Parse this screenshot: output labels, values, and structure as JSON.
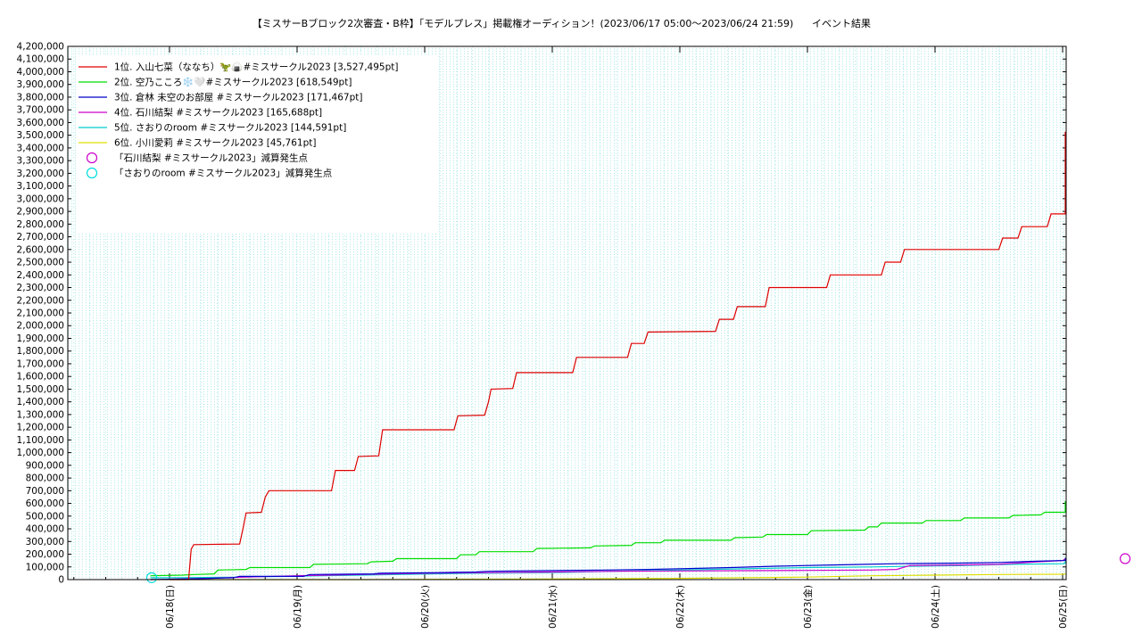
{
  "chart_data": {
    "type": "line",
    "title": "【ミスサーBブロック2次審査・B枠】「モデルプレス」掲載権オーディション！(2023/06/17 05:00～2023/06/24 21:59)",
    "subtitle": "イベント結果",
    "xlabel": "",
    "ylabel": "",
    "grid": true,
    "legend_position": "top-left",
    "x_ticks": [
      "06/18(日)",
      "06/19(月)",
      "06/20(火)",
      "06/21(水)",
      "06/22(木)",
      "06/23(金)",
      "06/24(土)",
      "06/25(日)"
    ],
    "x_range_days": [
      0,
      7.9
    ],
    "ylim": [
      0,
      4200000
    ],
    "y_ticks": [
      0,
      100000,
      200000,
      300000,
      400000,
      500000,
      600000,
      700000,
      800000,
      900000,
      1000000,
      1100000,
      1200000,
      1300000,
      1400000,
      1500000,
      1600000,
      1700000,
      1800000,
      1900000,
      2000000,
      2100000,
      2200000,
      2300000,
      2400000,
      2500000,
      2600000,
      2700000,
      2800000,
      2900000,
      3000000,
      3100000,
      3200000,
      3300000,
      3400000,
      3500000,
      3600000,
      3700000,
      3800000,
      3900000,
      4000000,
      4100000,
      4200000
    ],
    "y_tick_labels": [
      "0",
      "100,000",
      "200,000",
      "300,000",
      "400,000",
      "500,000",
      "600,000",
      "700,000",
      "800,000",
      "900,000",
      "1,000,000",
      "1,100,000",
      "1,200,000",
      "1,300,000",
      "1,400,000",
      "1,500,000",
      "1,600,000",
      "1,700,000",
      "1,800,000",
      "1,900,000",
      "2,000,000",
      "2,100,000",
      "2,200,000",
      "2,300,000",
      "2,400,000",
      "2,500,000",
      "2,600,000",
      "2,700,000",
      "2,800,000",
      "2,900,000",
      "3,000,000",
      "3,100,000",
      "3,200,000",
      "3,300,000",
      "3,400,000",
      "3,500,000",
      "3,600,000",
      "3,700,000",
      "3,800,000",
      "3,900,000",
      "4,000,000",
      "4,100,000",
      "4,200,000"
    ],
    "series": [
      {
        "name": "1位. 入山七菜（ななち）🦖🍙#ミスサークル2023 [3,527,495pt]",
        "color": "#dd0000",
        "points": [
          [
            0,
            0
          ],
          [
            0.15,
            0
          ],
          [
            0.17,
            240000
          ],
          [
            0.19,
            275000
          ],
          [
            0.55,
            280000
          ],
          [
            0.58,
            420000
          ],
          [
            0.6,
            525000
          ],
          [
            0.72,
            530000
          ],
          [
            0.75,
            650000
          ],
          [
            0.78,
            700000
          ],
          [
            1.27,
            700000
          ],
          [
            1.3,
            860000
          ],
          [
            1.45,
            860000
          ],
          [
            1.48,
            970000
          ],
          [
            1.64,
            975000
          ],
          [
            1.67,
            1180000
          ],
          [
            2.23,
            1180000
          ],
          [
            2.26,
            1290000
          ],
          [
            2.47,
            1295000
          ],
          [
            2.5,
            1400000
          ],
          [
            2.52,
            1500000
          ],
          [
            2.69,
            1505000
          ],
          [
            2.72,
            1630000
          ],
          [
            3.16,
            1630000
          ],
          [
            3.19,
            1750000
          ],
          [
            3.59,
            1750000
          ],
          [
            3.62,
            1860000
          ],
          [
            3.72,
            1860000
          ],
          [
            3.75,
            1950000
          ],
          [
            4.28,
            1955000
          ],
          [
            4.31,
            2050000
          ],
          [
            4.42,
            2050000
          ],
          [
            4.45,
            2150000
          ],
          [
            4.67,
            2150000
          ],
          [
            4.7,
            2300000
          ],
          [
            5.15,
            2300000
          ],
          [
            5.18,
            2400000
          ],
          [
            5.58,
            2400000
          ],
          [
            5.61,
            2500000
          ],
          [
            5.73,
            2500000
          ],
          [
            5.76,
            2600000
          ],
          [
            6.5,
            2600000
          ],
          [
            6.53,
            2690000
          ],
          [
            6.65,
            2690000
          ],
          [
            6.68,
            2780000
          ],
          [
            6.88,
            2780000
          ],
          [
            6.91,
            2880000
          ],
          [
            7.5,
            2880000
          ],
          [
            7.53,
            3040000
          ],
          [
            7.66,
            3040000
          ],
          [
            7.69,
            3150000
          ],
          [
            7.83,
            3150000
          ],
          [
            7.86,
            3300000
          ],
          [
            7.88,
            3525000
          ],
          [
            8.0,
            3527495
          ]
        ]
      },
      {
        "name": "2位. 空乃こころ❄️🤍#ミスサークル2023 [618,549pt]",
        "color": "#00dd00",
        "points": [
          [
            -0.15,
            30000
          ],
          [
            0.1,
            35000
          ],
          [
            0.2,
            40000
          ],
          [
            0.35,
            45000
          ],
          [
            0.38,
            75000
          ],
          [
            0.6,
            80000
          ],
          [
            0.63,
            95000
          ],
          [
            1.1,
            95000
          ],
          [
            1.13,
            120000
          ],
          [
            1.55,
            125000
          ],
          [
            1.58,
            140000
          ],
          [
            1.75,
            145000
          ],
          [
            1.78,
            165000
          ],
          [
            2.25,
            165000
          ],
          [
            2.28,
            195000
          ],
          [
            2.4,
            195000
          ],
          [
            2.43,
            220000
          ],
          [
            2.85,
            220000
          ],
          [
            2.88,
            245000
          ],
          [
            3.3,
            250000
          ],
          [
            3.33,
            265000
          ],
          [
            3.62,
            270000
          ],
          [
            3.65,
            290000
          ],
          [
            3.85,
            290000
          ],
          [
            3.88,
            310000
          ],
          [
            4.4,
            310000
          ],
          [
            4.43,
            330000
          ],
          [
            4.65,
            335000
          ],
          [
            4.68,
            355000
          ],
          [
            5.0,
            355000
          ],
          [
            5.03,
            385000
          ],
          [
            5.45,
            390000
          ],
          [
            5.48,
            415000
          ],
          [
            5.55,
            415000
          ],
          [
            5.58,
            445000
          ],
          [
            5.9,
            445000
          ],
          [
            5.93,
            465000
          ],
          [
            6.2,
            465000
          ],
          [
            6.23,
            485000
          ],
          [
            6.58,
            485000
          ],
          [
            6.61,
            505000
          ],
          [
            6.83,
            510000
          ],
          [
            6.86,
            530000
          ],
          [
            7.15,
            530000
          ],
          [
            7.18,
            560000
          ],
          [
            7.4,
            560000
          ],
          [
            7.43,
            585000
          ],
          [
            7.85,
            590000
          ],
          [
            7.88,
            615000
          ],
          [
            8.0,
            618549
          ]
        ]
      },
      {
        "name": "3位. 倉林 未空のお部屋 #ミスサークル2023 [171,467pt]",
        "color": "#0000cc",
        "points": [
          [
            -0.15,
            0
          ],
          [
            0.15,
            5000
          ],
          [
            0.5,
            15000
          ],
          [
            0.55,
            25000
          ],
          [
            1.05,
            25000
          ],
          [
            1.1,
            40000
          ],
          [
            1.6,
            45000
          ],
          [
            1.65,
            50000
          ],
          [
            2.1,
            55000
          ],
          [
            2.4,
            60000
          ],
          [
            2.5,
            65000
          ],
          [
            2.95,
            70000
          ],
          [
            3.4,
            75000
          ],
          [
            3.75,
            80000
          ],
          [
            4.0,
            85000
          ],
          [
            4.4,
            95000
          ],
          [
            4.75,
            105000
          ],
          [
            5.2,
            115000
          ],
          [
            5.45,
            120000
          ],
          [
            5.7,
            125000
          ],
          [
            6.2,
            130000
          ],
          [
            6.5,
            135000
          ],
          [
            6.8,
            145000
          ],
          [
            7.1,
            150000
          ],
          [
            7.5,
            160000
          ],
          [
            7.9,
            170000
          ],
          [
            8.0,
            171467
          ]
        ]
      },
      {
        "name": "4位. 石川結梨 #ミスサークル2023 [165,688pt]",
        "color": "#cc00cc",
        "points": [
          [
            -0.15,
            0
          ],
          [
            0.3,
            10000
          ],
          [
            0.6,
            20000
          ],
          [
            1.0,
            30000
          ],
          [
            1.5,
            40000
          ],
          [
            2.0,
            50000
          ],
          [
            2.5,
            55000
          ],
          [
            3.0,
            60000
          ],
          [
            3.5,
            65000
          ],
          [
            4.0,
            68000
          ],
          [
            4.5,
            70000
          ],
          [
            5.0,
            72000
          ],
          [
            5.5,
            75000
          ],
          [
            5.7,
            80000
          ],
          [
            5.8,
            110000
          ],
          [
            6.2,
            115000
          ],
          [
            6.5,
            120000
          ],
          [
            6.8,
            140000
          ],
          [
            7.0,
            150000
          ],
          [
            7.35,
            160000
          ],
          [
            7.6,
            162000
          ],
          [
            8.0,
            165688
          ]
        ]
      },
      {
        "name": "5位. さおりのroom #ミスサークル2023 [144,591pt]",
        "color": "#00cccc",
        "points": [
          [
            -0.15,
            15000
          ],
          [
            0.1,
            15000
          ],
          [
            0.6,
            20000
          ],
          [
            1.2,
            30000
          ],
          [
            1.8,
            40000
          ],
          [
            2.4,
            50000
          ],
          [
            3.0,
            55000
          ],
          [
            3.5,
            65000
          ],
          [
            4.0,
            75000
          ],
          [
            4.5,
            85000
          ],
          [
            5.0,
            95000
          ],
          [
            5.5,
            100000
          ],
          [
            5.8,
            105000
          ],
          [
            6.2,
            110000
          ],
          [
            6.6,
            120000
          ],
          [
            7.0,
            125000
          ],
          [
            7.5,
            130000
          ],
          [
            7.8,
            140000
          ],
          [
            8.0,
            144591
          ]
        ]
      },
      {
        "name": "6位. 小川愛莉 #ミスサークル2023 [45,761pt]",
        "color": "#dddd00",
        "points": [
          [
            -0.15,
            0
          ],
          [
            1.5,
            0
          ],
          [
            2.0,
            2000
          ],
          [
            3.0,
            5000
          ],
          [
            4.0,
            10000
          ],
          [
            5.0,
            20000
          ],
          [
            5.5,
            30000
          ],
          [
            6.0,
            35000
          ],
          [
            6.5,
            40000
          ],
          [
            7.0,
            42000
          ],
          [
            7.5,
            44000
          ],
          [
            8.0,
            45761
          ]
        ]
      }
    ],
    "markers": [
      {
        "name": "「石川結梨 #ミスサークル2023」減算発生点",
        "color": "#cc00cc",
        "x": 7.49,
        "y": 165000
      },
      {
        "name": "「さおりのroom #ミスサークル2023」減算発生点",
        "color": "#00dddd",
        "x": -0.14,
        "y": 15000
      }
    ]
  }
}
